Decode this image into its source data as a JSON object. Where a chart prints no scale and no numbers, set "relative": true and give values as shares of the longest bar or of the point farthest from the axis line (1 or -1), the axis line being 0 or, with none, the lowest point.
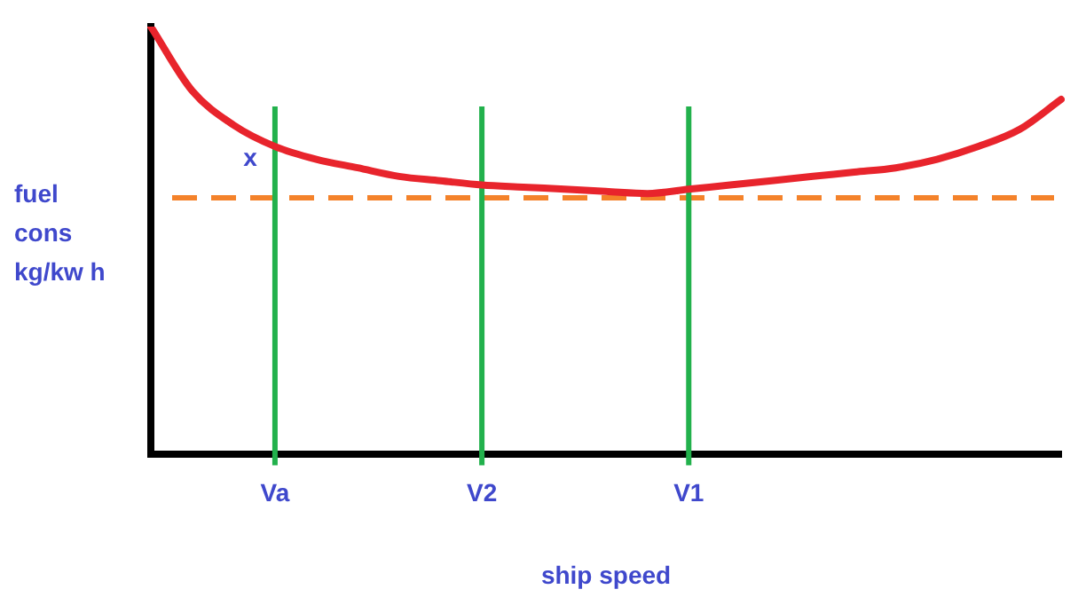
{
  "chart_data": {
    "type": "line",
    "relative": true,
    "xlabel": "ship speed",
    "ylabel": "fuel\ncons\nkg/kw h",
    "categories": [
      null,
      null,
      null,
      "Va",
      null,
      null,
      null,
      null,
      "V2",
      null,
      null,
      null,
      null,
      "V1",
      null,
      null,
      null,
      null,
      null,
      null,
      null,
      null,
      null
    ],
    "series": [
      {
        "color": "#e8242c",
        "values": [
          1.0,
          0.85,
          0.77,
          0.72,
          0.69,
          0.67,
          0.65,
          0.64,
          0.63,
          0.625,
          0.62,
          0.615,
          0.61,
          0.62,
          0.63,
          0.64,
          0.65,
          0.66,
          0.67,
          0.69,
          0.72,
          0.76,
          0.83
        ]
      }
    ],
    "ref_lines": [
      {
        "axis": "y",
        "value": 0.6,
        "color": "#f4822a",
        "line_style": "dashed"
      },
      {
        "axis": "x",
        "value": "Va",
        "color": "#22b14c",
        "line_style": "solid"
      },
      {
        "axis": "x",
        "value": "V2",
        "color": "#22b14c",
        "line_style": "solid"
      },
      {
        "axis": "x",
        "value": "V1",
        "color": "#22b14c",
        "line_style": "solid"
      }
    ],
    "annotations": [
      {
        "text": "x",
        "x": "Va",
        "y": 0.69
      }
    ],
    "grid": false,
    "legend": false,
    "marker": "none",
    "line_style": "solid"
  }
}
